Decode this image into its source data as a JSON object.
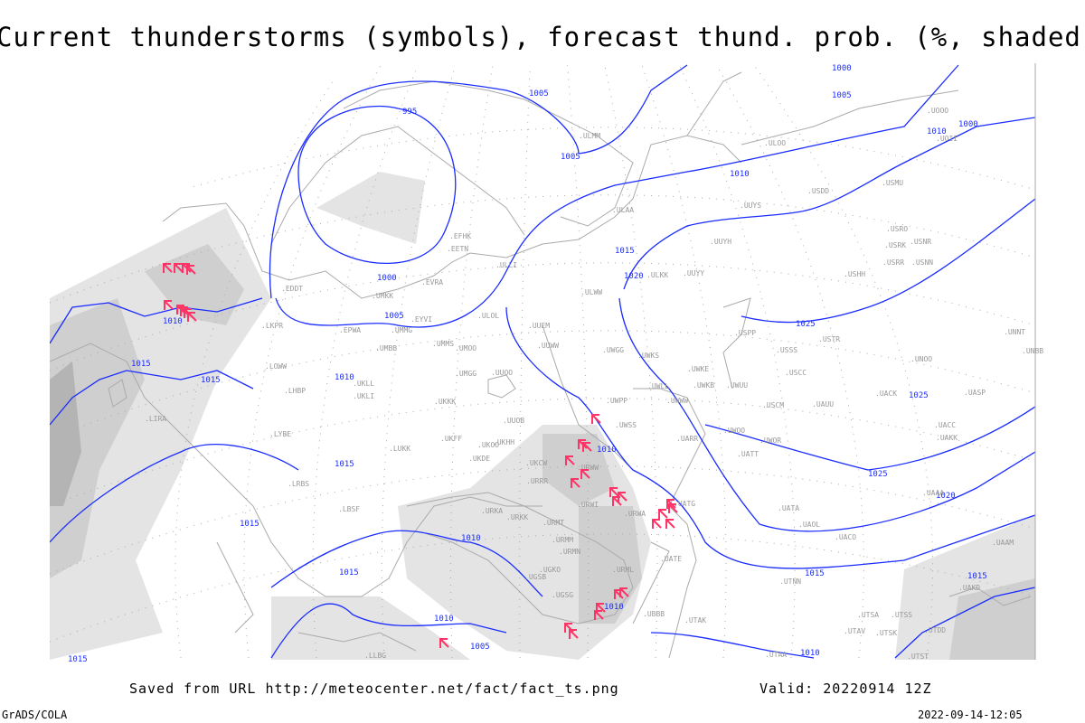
{
  "title": "Current thunderstorms (symbols), forecast thund. prob. (%, shaded)",
  "footer": {
    "saved_from": "Saved from URL http://meteocenter.net/fact/fact_ts.png",
    "valid": "Valid: 20220914 12Z",
    "software": "GrADS/COLA",
    "timestamp": "2022-09-14-12:05"
  },
  "map": {
    "colors": {
      "isobar": "#1a2cff",
      "coast": "#aaaaaa",
      "storm_symbol": "#ff3366",
      "shade_light": "#e4e4e4",
      "shade_mid": "#cfcfcf",
      "shade_dark": "#b4b4b4"
    },
    "isobar_labels": [
      "1000",
      "1005",
      "995",
      "1000",
      "1005",
      "1010",
      "1010",
      "1015",
      "1015",
      "1015",
      "1015",
      "1010",
      "1005",
      "1005",
      "1010",
      "1015",
      "1020",
      "1025",
      "1025",
      "1025",
      "1020",
      "1015",
      "1010",
      "1015",
      "1010",
      "1000",
      "1005",
      "1010",
      "1015",
      "1010",
      "1015",
      "1010"
    ],
    "stations": [
      "ULMM",
      "ULOO",
      "UUYS",
      "USDD",
      "USMU",
      "UOOO",
      "UOII",
      "ULAA",
      "UUYH",
      "USRO",
      "USRK",
      "USNR",
      "USRR",
      "USNN",
      "USHH",
      "ULKK",
      "UUYY",
      "EFHK",
      "EETN",
      "ULLI",
      "EVRA",
      "UMKK",
      "EYVI",
      "UMMG",
      "UMMS",
      "UMOO",
      "ULWW",
      "ULOL",
      "UUEM",
      "UUWW",
      "UWGG",
      "UWKS",
      "UWKE",
      "UWKB",
      "UWUU",
      "USPP",
      "USSS",
      "USTR",
      "USCC",
      "UNOO",
      "USCM",
      "UAUU",
      "UACK",
      "UASP",
      "UNNT",
      "UNBB",
      "EPWA",
      "UMBB",
      "EDDT",
      "LKPR",
      "LOWW",
      "LHBP",
      "UKLL",
      "UKLI",
      "UMGG",
      "UUOO",
      "UKKK",
      "UUOB",
      "UWPP",
      "UWWW",
      "UWLL",
      "UWSS",
      "UARR",
      "UWOO",
      "UWOR",
      "UATT",
      "UAKK",
      "UACC",
      "UKHH",
      "UKFF",
      "UKOO",
      "UKDE",
      "UKCW",
      "URWW",
      "URRR",
      "LUKK",
      "LRBS",
      "LYBE",
      "LIRA",
      "LBSF",
      "URKK",
      "URKA",
      "URWI",
      "URMT",
      "URMM",
      "URMN",
      "UGKO",
      "UGSB",
      "URML",
      "URWA",
      "UATG",
      "UATE",
      "UATA",
      "UAOL",
      "UACO",
      "UGSG",
      "UBBB",
      "UTNN",
      "UTAK",
      "UTSA",
      "UTSS",
      "UTAV",
      "UTSK",
      "UTDD",
      "UAAA",
      "UAAM",
      "UTAA",
      "UTST",
      "LLBG",
      "UAKD"
    ],
    "storm_symbol_name": "thunderstorm-symbol",
    "storm_count": 30
  }
}
